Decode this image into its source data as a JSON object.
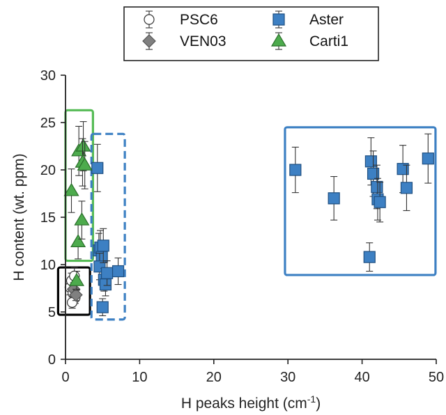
{
  "chart_data": {
    "type": "scatter",
    "xlabel": "H peaks height (cm",
    "xlabel_sup": "-1",
    "xlabel_end": ")",
    "ylabel": "H content (wt. ppm)",
    "xlim": [
      0,
      50
    ],
    "ylim": [
      0,
      30
    ],
    "x_ticks": [
      0,
      10,
      20,
      30,
      40,
      50
    ],
    "y_ticks": [
      0,
      5,
      10,
      15,
      20,
      25,
      30
    ],
    "grid": false,
    "legend_position": "top",
    "series": [
      {
        "name": "PSC6",
        "marker": "circle",
        "color": "#ffffff",
        "stroke": "#333333",
        "points": [
          {
            "x": 0.6,
            "y": 7.6,
            "err": 0.8
          },
          {
            "x": 0.8,
            "y": 8.3,
            "err": 0.8
          },
          {
            "x": 1.0,
            "y": 7.0,
            "err": 0.7
          },
          {
            "x": 1.2,
            "y": 8.8,
            "err": 0.9
          },
          {
            "x": 1.3,
            "y": 6.5,
            "err": 0.6
          },
          {
            "x": 0.9,
            "y": 6.0,
            "err": 0.6
          }
        ]
      },
      {
        "name": "VEN03",
        "marker": "diamond",
        "color": "#808080",
        "stroke": "#555555",
        "points": [
          {
            "x": 1.1,
            "y": 7.4,
            "err": 0.7
          },
          {
            "x": 1.4,
            "y": 6.8,
            "err": 0.6
          }
        ]
      },
      {
        "name": "Aster",
        "marker": "square",
        "color": "#3d80c3",
        "stroke": "#1f4f80",
        "points": [
          {
            "x": 4.3,
            "y": 20.2,
            "err": 2.5
          },
          {
            "x": 4.5,
            "y": 11.5,
            "err": 1.8
          },
          {
            "x": 4.7,
            "y": 11.8,
            "err": 1.8
          },
          {
            "x": 4.9,
            "y": 10.8,
            "err": 1.6
          },
          {
            "x": 4.6,
            "y": 9.8,
            "err": 1.4
          },
          {
            "x": 5.1,
            "y": 12.0,
            "err": 1.8
          },
          {
            "x": 5.2,
            "y": 8.4,
            "err": 1.2
          },
          {
            "x": 5.4,
            "y": 7.9,
            "err": 1.2
          },
          {
            "x": 5.6,
            "y": 9.1,
            "err": 1.3
          },
          {
            "x": 5.0,
            "y": 5.5,
            "err": 0.9
          },
          {
            "x": 7.1,
            "y": 9.3,
            "err": 1.4
          },
          {
            "x": 31.0,
            "y": 20.0,
            "err": 2.4
          },
          {
            "x": 36.2,
            "y": 17.0,
            "err": 2.3
          },
          {
            "x": 41.0,
            "y": 10.8,
            "err": 1.5
          },
          {
            "x": 41.2,
            "y": 20.9,
            "err": 2.5
          },
          {
            "x": 41.5,
            "y": 19.6,
            "err": 2.4
          },
          {
            "x": 42.0,
            "y": 18.2,
            "err": 2.3
          },
          {
            "x": 42.1,
            "y": 16.9,
            "err": 2.2
          },
          {
            "x": 42.4,
            "y": 16.6,
            "err": 2.1
          },
          {
            "x": 45.5,
            "y": 20.1,
            "err": 2.5
          },
          {
            "x": 46.0,
            "y": 18.1,
            "err": 2.4
          },
          {
            "x": 48.9,
            "y": 21.2,
            "err": 2.6
          }
        ]
      },
      {
        "name": "Carti1",
        "marker": "triangle",
        "color": "#4dab4d",
        "stroke": "#2a6e2a",
        "points": [
          {
            "x": 0.8,
            "y": 17.8,
            "err": 2.3
          },
          {
            "x": 1.7,
            "y": 12.4,
            "err": 1.8
          },
          {
            "x": 2.2,
            "y": 14.7,
            "err": 2.0
          },
          {
            "x": 1.8,
            "y": 22.0,
            "err": 2.6
          },
          {
            "x": 2.4,
            "y": 22.5,
            "err": 2.6
          },
          {
            "x": 2.3,
            "y": 20.8,
            "err": 2.5
          },
          {
            "x": 2.6,
            "y": 20.5,
            "err": 2.5
          },
          {
            "x": 1.5,
            "y": 8.3,
            "err": 1.0
          }
        ]
      }
    ],
    "regions": [
      {
        "name": "green-box",
        "x": [
          0.0,
          3.7
        ],
        "y": [
          10.4,
          26.3
        ],
        "color": "#55bb55",
        "style": "solid"
      },
      {
        "name": "black-box",
        "x": [
          -1.0,
          3.3
        ],
        "y": [
          4.7,
          9.7
        ],
        "color": "#000000",
        "style": "solid"
      },
      {
        "name": "blue-dashed-box",
        "x": [
          3.5,
          8.0
        ],
        "y": [
          4.2,
          23.8
        ],
        "color": "#3d80c3",
        "style": "dashed"
      },
      {
        "name": "blue-box",
        "x": [
          29.6,
          49.9
        ],
        "y": [
          8.9,
          24.5
        ],
        "color": "#3d80c3",
        "style": "solid"
      }
    ]
  }
}
